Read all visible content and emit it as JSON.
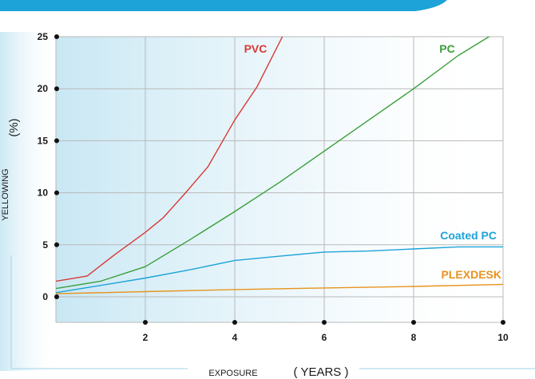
{
  "chart_data": {
    "type": "line",
    "title": "",
    "xlabel": "EXPOSURE",
    "xunit": "( YEARS )",
    "ylabel": "YELLOWING",
    "yunit": "(%)",
    "xlim": [
      0,
      10
    ],
    "ylim": [
      0,
      25
    ],
    "xticks": [
      "2",
      "4",
      "6",
      "8",
      "10"
    ],
    "yticks": [
      "0",
      "5",
      "10",
      "15",
      "20",
      "25"
    ],
    "grid": true,
    "legend": "inline labels",
    "series": [
      {
        "name": "PVC",
        "color": "#d93a35",
        "x": [
          0,
          0.7,
          1.3,
          2,
          2.4,
          2.9,
          3.4,
          4,
          4.5,
          5.1
        ],
        "y": [
          1.5,
          2,
          4,
          6.2,
          7.6,
          10,
          12.5,
          17,
          20.2,
          25.3
        ]
      },
      {
        "name": "PC",
        "color": "#3a9e3a",
        "x": [
          0,
          1,
          2,
          3,
          4,
          5,
          6,
          7,
          8,
          9,
          9.8
        ],
        "y": [
          0.8,
          1.5,
          2.9,
          5.5,
          8.2,
          11,
          14,
          17,
          20,
          23.2,
          25.3
        ]
      },
      {
        "name": "Coated PC",
        "color": "#1ea3d8",
        "x": [
          0,
          1,
          2,
          3,
          4,
          5,
          6,
          7,
          8,
          9,
          10
        ],
        "y": [
          0.4,
          1.1,
          1.8,
          2.6,
          3.5,
          3.9,
          4.3,
          4.4,
          4.6,
          4.8,
          4.8
        ]
      },
      {
        "name": "PLEXDESK",
        "color": "#e8931e",
        "x": [
          0,
          2,
          4,
          6,
          8,
          10
        ],
        "y": [
          0.3,
          0.5,
          0.7,
          0.85,
          1.0,
          1.2
        ]
      }
    ],
    "colors": {
      "banner": "#1ea3d8",
      "grid": "#b8b8b8",
      "shade": "#c6e6f3",
      "frame_line": "#9fd3ea"
    }
  }
}
